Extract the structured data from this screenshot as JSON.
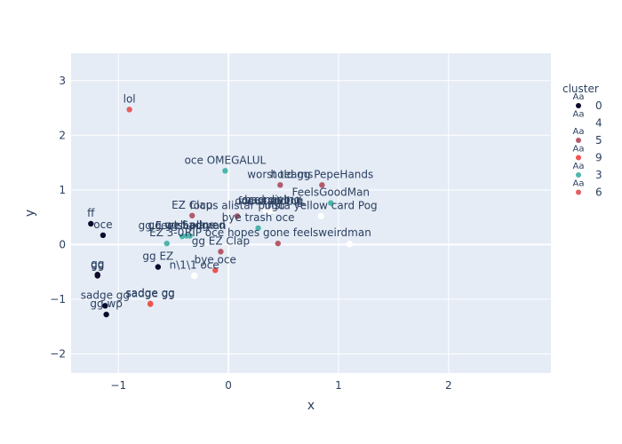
{
  "chart_data": {
    "type": "scatter",
    "title": "",
    "xlabel": "x",
    "ylabel": "y",
    "xlim": [
      -1.43,
      2.93
    ],
    "ylim": [
      -2.35,
      3.5
    ],
    "x_ticks": [
      -1,
      0,
      1,
      2
    ],
    "y_ticks": [
      -2,
      -1,
      0,
      1,
      2,
      3
    ],
    "x_tick_labels": [
      "−1",
      "0",
      "1",
      "2"
    ],
    "y_tick_labels": [
      "−2",
      "−1",
      "0",
      "1",
      "2",
      "3"
    ],
    "grid": true,
    "legend": {
      "title": "cluster",
      "placement": "top-right",
      "entries": [
        {
          "name": "0",
          "color": "#0d0a2b"
        },
        {
          "name": "4",
          "color": "#ffffff"
        },
        {
          "name": "5",
          "color": "#b45a6a"
        },
        {
          "name": "9",
          "color": "#ef5350"
        },
        {
          "name": "3",
          "color": "#4db6ac"
        },
        {
          "name": "6",
          "color": "#e35f5f"
        }
      ],
      "marker_text": "Aa"
    },
    "points": [
      {
        "label": "lol",
        "x": -0.9,
        "y": 2.47,
        "cluster": "6"
      },
      {
        "label": "ff",
        "x": -1.25,
        "y": 0.38,
        "cluster": "0"
      },
      {
        "label": "oce",
        "x": -1.14,
        "y": 0.17,
        "cluster": "0"
      },
      {
        "label": "gg",
        "x": -1.19,
        "y": -0.55,
        "cluster": "0"
      },
      {
        "label": "gg",
        "x": -1.19,
        "y": -0.57,
        "cluster": "0"
      },
      {
        "label": "gg EZ",
        "x": -0.64,
        "y": -0.41,
        "cluster": "0"
      },
      {
        "label": "sadge gg",
        "x": -1.12,
        "y": -1.12,
        "cluster": "0"
      },
      {
        "label": "gg wp",
        "x": -1.11,
        "y": -1.28,
        "cluster": "0"
      },
      {
        "label": "sadge gg",
        "x": -0.71,
        "y": -1.09,
        "cluster": "9"
      },
      {
        "label": "sadge gg",
        "x": -0.71,
        "y": -1.08,
        "cluster": "9"
      },
      {
        "label": "oce OMEGALUL",
        "x": -0.03,
        "y": 1.35,
        "cluster": "3"
      },
      {
        "label": "EZ Clap",
        "x": -0.33,
        "y": 0.53,
        "cluster": "5"
      },
      {
        "label": "gg Feelsbadman",
        "x": -0.42,
        "y": 0.15,
        "cluster": "3"
      },
      {
        "label": "gg Sadge",
        "x": -0.35,
        "y": 0.16,
        "cluster": "3"
      },
      {
        "label": "gg well played",
        "x": -0.38,
        "y": 0.16,
        "cluster": "3"
      },
      {
        "label": "EZ 3-0",
        "x": -0.56,
        "y": 0.02,
        "cluster": "3"
      },
      {
        "label": "gg EZ Clap",
        "x": -0.07,
        "y": -0.13,
        "cluster": "5"
      },
      {
        "label": "n\\1\\1 oce",
        "x": -0.31,
        "y": -0.57,
        "cluster": "4"
      },
      {
        "label": "bye oce",
        "x": -0.12,
        "y": -0.47,
        "cluster": "9"
      },
      {
        "label": "focus ali LUL",
        "x": 0.39,
        "y": 0.6,
        "cluster": "3"
      },
      {
        "label": "focus alistar pogu",
        "x": 0.08,
        "y": 0.52,
        "cluster": "5"
      },
      {
        "label": "oce noob",
        "x": 0.34,
        "y": 0.62,
        "cluster": "4"
      },
      {
        "label": "oce standing",
        "x": 0.37,
        "y": 0.6,
        "cluster": "4"
      },
      {
        "label": "bad diving",
        "x": 0.4,
        "y": 0.62,
        "cluster": "4"
      },
      {
        "label": "bye trash oce",
        "x": 0.27,
        "y": 0.3,
        "cluster": "3"
      },
      {
        "label": "worst teams",
        "x": 0.47,
        "y": 1.09,
        "cluster": "5"
      },
      {
        "label": "hold gg PepeHands",
        "x": 0.85,
        "y": 1.09,
        "cluster": "5"
      },
      {
        "label": "insta yellow card Pog",
        "x": 0.84,
        "y": 0.52,
        "cluster": "4"
      },
      {
        "label": "FeelsGoodMan",
        "x": 0.93,
        "y": 0.76,
        "cluster": "3"
      },
      {
        "label": "RIP oce hopes gone feelsweirdman",
        "x": 0.45,
        "y": 0.02,
        "cluster": "5"
      },
      {
        "label": "",
        "x": 1.1,
        "y": 0.01,
        "cluster": "4"
      }
    ]
  }
}
